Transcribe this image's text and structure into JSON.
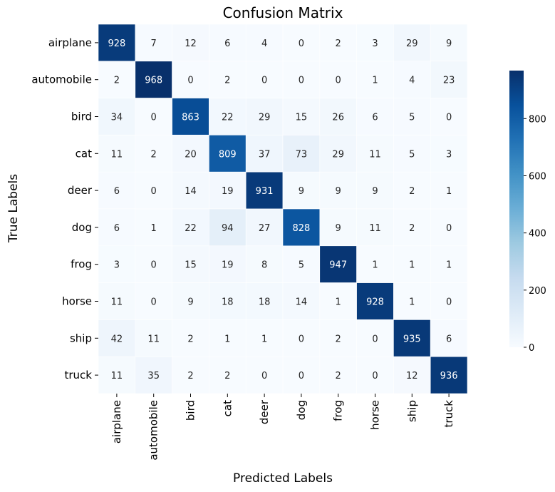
{
  "chart_data": {
    "type": "heatmap",
    "title": "Confusion Matrix",
    "xlabel": "Predicted Labels",
    "ylabel": "True Labels",
    "x_categories": [
      "airplane",
      "automobile",
      "bird",
      "cat",
      "deer",
      "dog",
      "frog",
      "horse",
      "ship",
      "truck"
    ],
    "y_categories": [
      "airplane",
      "automobile",
      "bird",
      "cat",
      "deer",
      "dog",
      "frog",
      "horse",
      "ship",
      "truck"
    ],
    "values": [
      [
        928,
        7,
        12,
        6,
        4,
        0,
        2,
        3,
        29,
        9
      ],
      [
        2,
        968,
        0,
        2,
        0,
        0,
        0,
        1,
        4,
        23
      ],
      [
        34,
        0,
        863,
        22,
        29,
        15,
        26,
        6,
        5,
        0
      ],
      [
        11,
        2,
        20,
        809,
        37,
        73,
        29,
        11,
        5,
        3
      ],
      [
        6,
        0,
        14,
        19,
        931,
        9,
        9,
        9,
        2,
        1
      ],
      [
        6,
        1,
        22,
        94,
        27,
        828,
        9,
        11,
        2,
        0
      ],
      [
        3,
        0,
        15,
        19,
        8,
        5,
        947,
        1,
        1,
        1
      ],
      [
        11,
        0,
        9,
        18,
        18,
        14,
        1,
        928,
        1,
        0
      ],
      [
        42,
        11,
        2,
        1,
        1,
        0,
        2,
        0,
        935,
        6
      ],
      [
        11,
        35,
        2,
        2,
        0,
        0,
        2,
        0,
        12,
        936
      ]
    ],
    "colormap": "Blues",
    "colorbar": {
      "range": [
        0,
        968
      ],
      "ticks": [
        0,
        200,
        400,
        600,
        800
      ]
    },
    "grid": false
  }
}
